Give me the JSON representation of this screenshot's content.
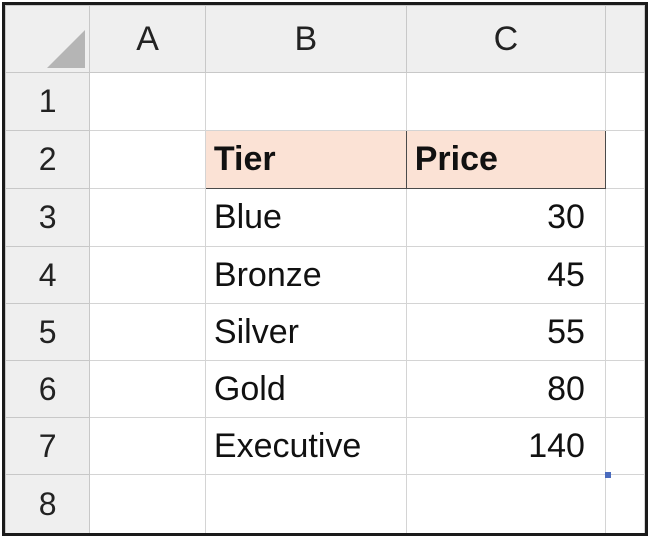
{
  "columns": [
    "A",
    "B",
    "C"
  ],
  "rows": [
    "1",
    "2",
    "3",
    "4",
    "5",
    "6",
    "7",
    "8"
  ],
  "table": {
    "header": {
      "tier": "Tier",
      "price": "Price"
    },
    "entries": [
      {
        "tier": "Blue",
        "price": "30"
      },
      {
        "tier": "Bronze",
        "price": "45"
      },
      {
        "tier": "Silver",
        "price": "55"
      },
      {
        "tier": "Gold",
        "price": "80"
      },
      {
        "tier": "Executive",
        "price": "140"
      }
    ]
  },
  "colors": {
    "header_fill": "#fbe2d5",
    "heading_bg": "#efefef",
    "gridline": "#d4d4d4",
    "selection": "#4a6bbd"
  }
}
